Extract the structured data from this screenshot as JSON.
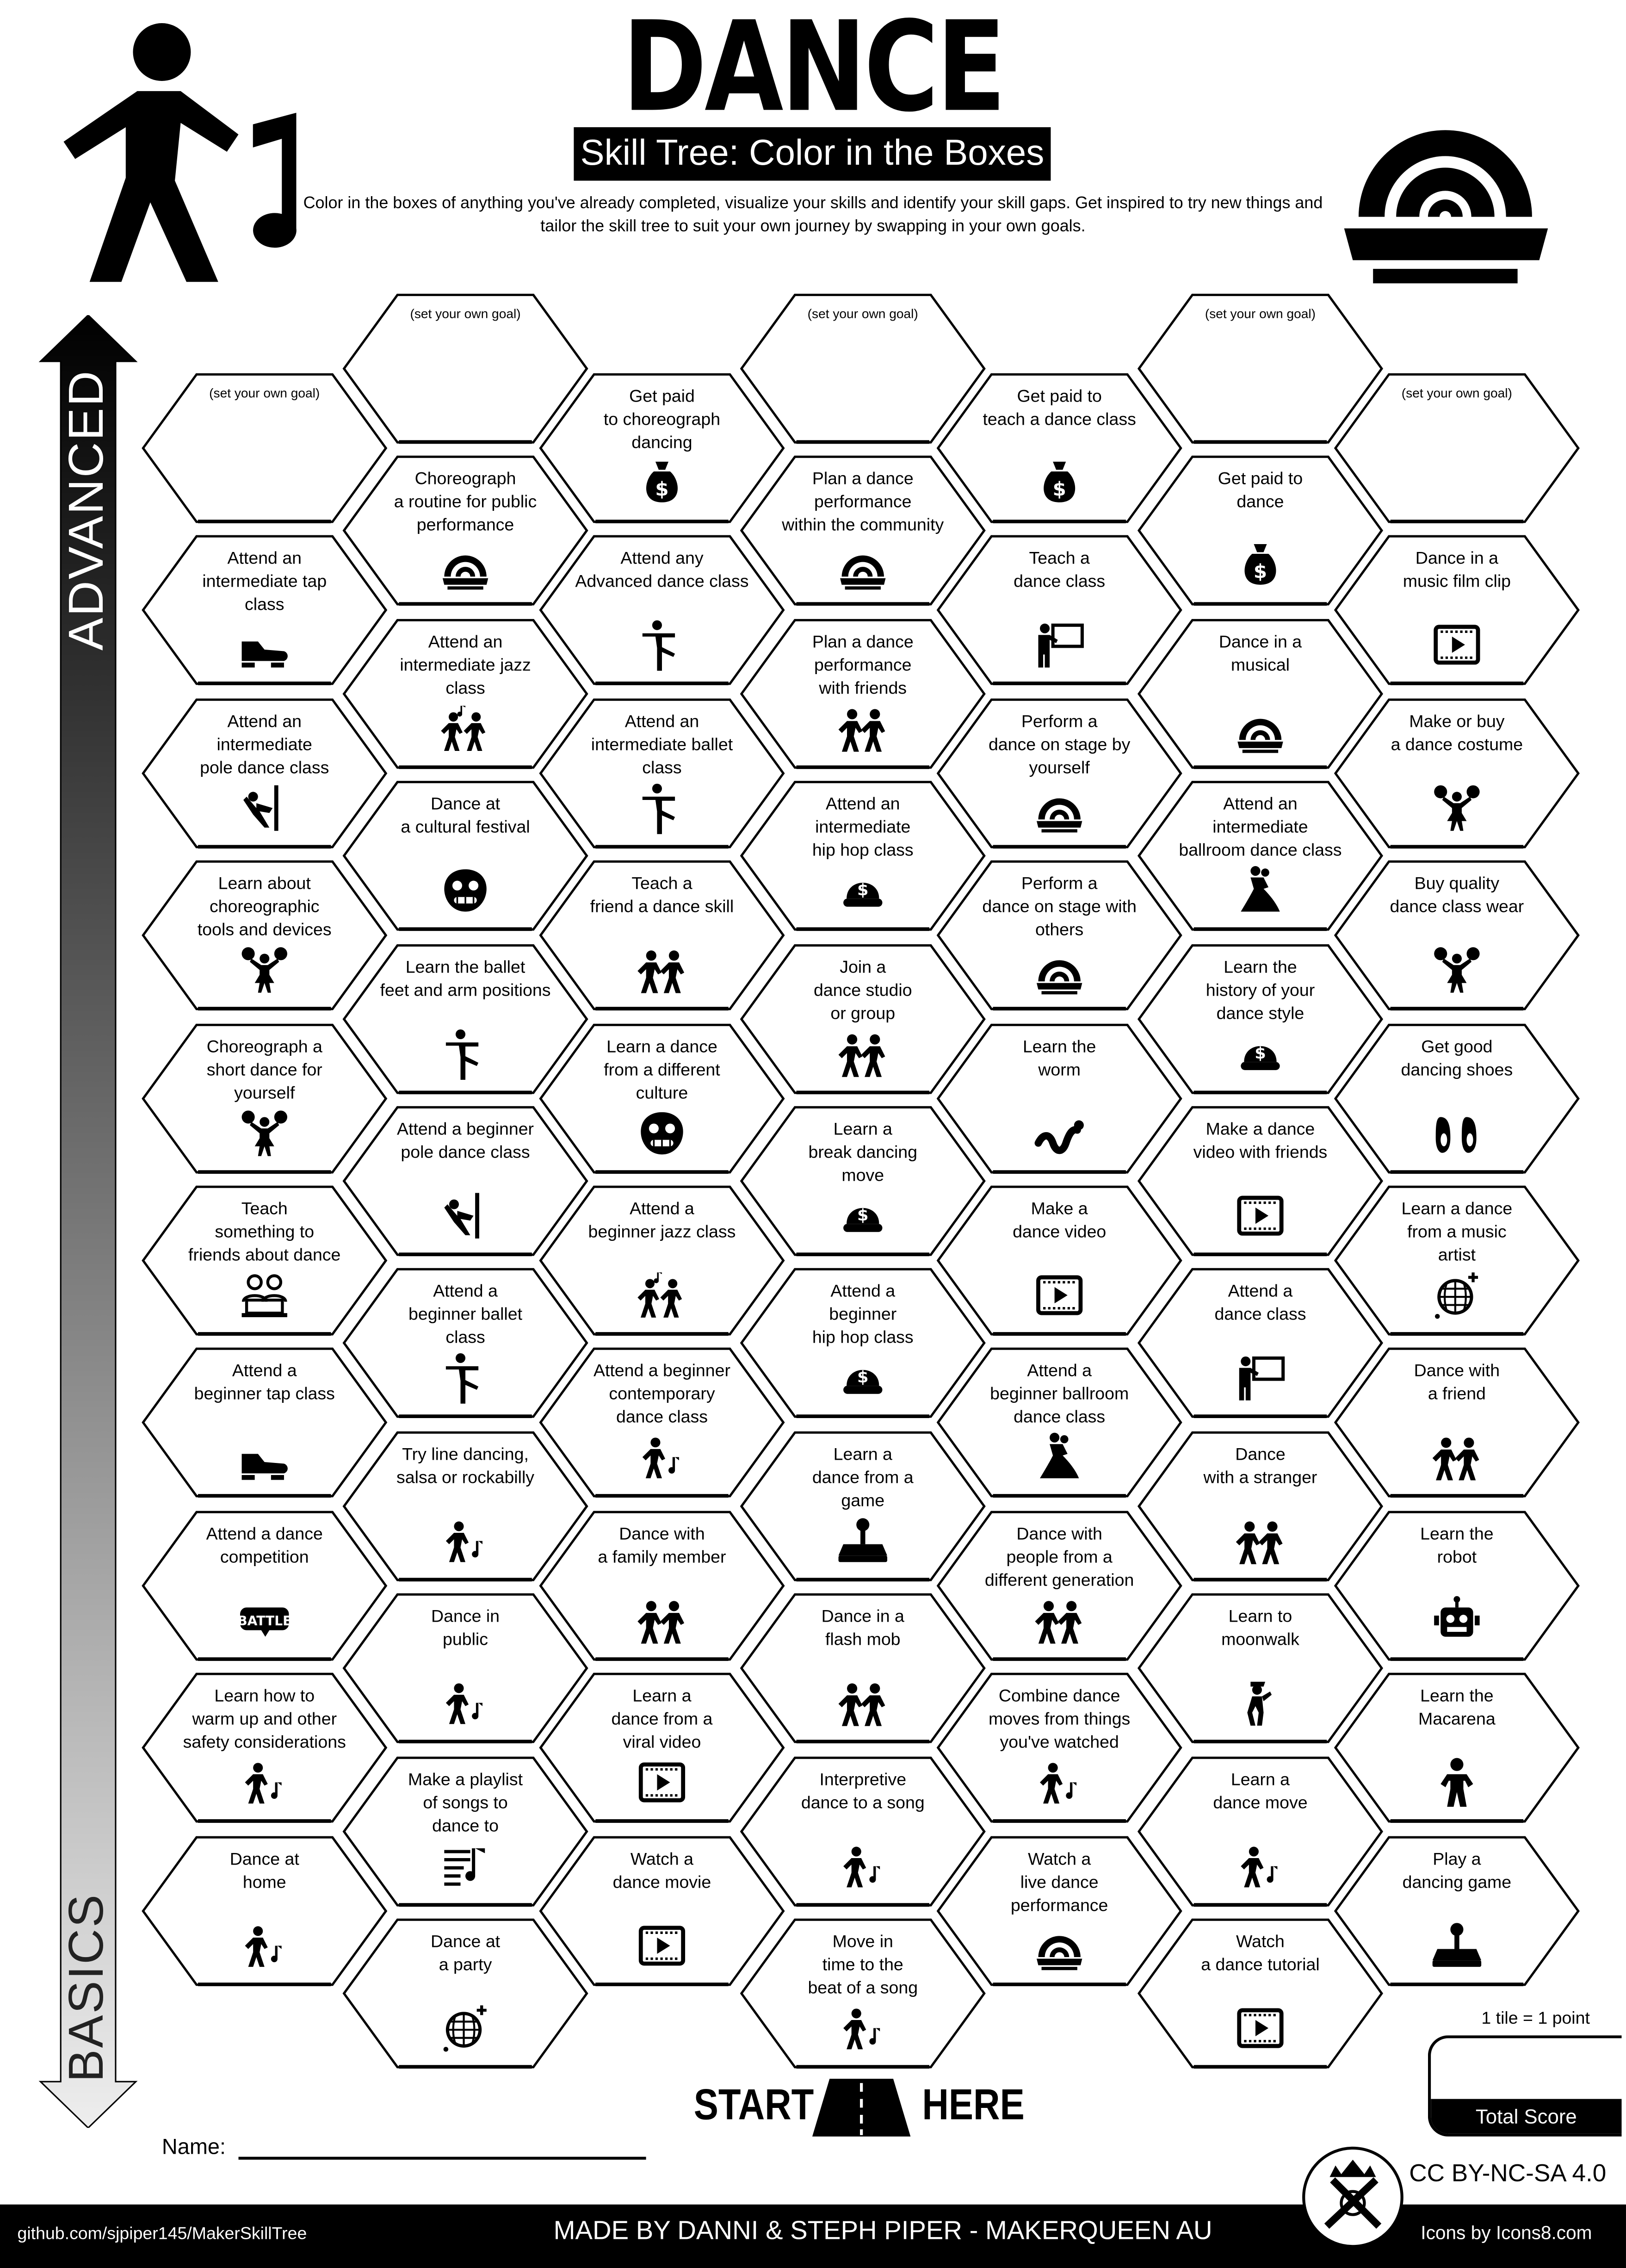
{
  "header": {
    "title": "DANCE",
    "subtitle": "Skill Tree: Color in the Boxes",
    "description": "Color in the boxes of anything you've already completed, visualize your skills and identify your skill gaps.  Get inspired to try new things and tailor the skill tree to suit your own journey by swapping in your own goals."
  },
  "axis": {
    "top_label": "ADVANCED",
    "bottom_label": "BASICS"
  },
  "colors": {
    "ink": "#000000",
    "paper": "#ffffff",
    "arrow_bottom": "#e8e8e8"
  },
  "columns": [
    [
      {
        "label": "(set your own goal)",
        "goal": true
      },
      {
        "label": "Attend an\nintermediate tap\nclass",
        "icon": "tap-shoe-icon"
      },
      {
        "label": "Attend an\nintermediate\npole dance class",
        "icon": "pole-dance-icon"
      },
      {
        "label": "Learn about\nchoreographic\ntools and devices",
        "icon": "cheerleader-icon"
      },
      {
        "label": "Choreograph a\nshort dance for\nyourself",
        "icon": "cheerleader-icon"
      },
      {
        "label": "Teach\nsomething to\nfriends about dance",
        "icon": "friends-laptop-icon"
      },
      {
        "label": "Attend a\nbeginner tap class",
        "icon": "tap-shoe-icon"
      },
      {
        "label": "Attend a dance\ncompetition",
        "icon": "battle-badge-icon"
      },
      {
        "label": "Learn how to\nwarm up and other\nsafety considerations",
        "icon": "dancer-note-icon"
      },
      {
        "label": "Dance at\nhome",
        "icon": "dancer-note-icon"
      }
    ],
    [
      {
        "label": "(set your own goal)",
        "goal": true
      },
      {
        "label": "Choreograph\na routine for public\nperformance",
        "icon": "stage-icon"
      },
      {
        "label": "Attend an\nintermediate jazz\nclass",
        "icon": "jazz-dancers-icon"
      },
      {
        "label": "Dance at\na cultural festival",
        "icon": "lion-mask-icon"
      },
      {
        "label": "Learn the ballet\nfeet and arm positions",
        "icon": "ballet-pose-icon"
      },
      {
        "label": "Attend a beginner\npole dance class",
        "icon": "pole-dance-icon"
      },
      {
        "label": "Attend a\nbeginner ballet\nclass",
        "icon": "ballet-pose-icon"
      },
      {
        "label": "Try line dancing,\nsalsa or rockabilly",
        "icon": "dancer-note-icon"
      },
      {
        "label": "Dance in\npublic",
        "icon": "dancer-note-icon"
      },
      {
        "label": "Make a playlist\nof songs to\ndance to",
        "icon": "playlist-icon"
      },
      {
        "label": "Dance at\na party",
        "icon": "disco-ball-icon"
      }
    ],
    [
      {
        "label": "Get paid\nto choreograph\ndancing",
        "icon": "money-bag-icon"
      },
      {
        "label": "Attend any\nAdvanced dance class",
        "icon": "ballet-pose-icon"
      },
      {
        "label": "Attend an\nintermediate ballet\nclass",
        "icon": "ballet-pose-icon"
      },
      {
        "label": "Teach a\nfriend a dance skill",
        "icon": "group-dance-icon"
      },
      {
        "label": "Learn a dance\nfrom a different\nculture",
        "icon": "lion-mask-icon"
      },
      {
        "label": "Attend a\nbeginner jazz class",
        "icon": "jazz-dancers-icon"
      },
      {
        "label": "Attend a beginner\ncontemporary\ndance class",
        "icon": "dancer-note-icon"
      },
      {
        "label": "Dance with\na family member",
        "icon": "group-dance-icon"
      },
      {
        "label": "Learn a\ndance from a\nviral video",
        "icon": "video-icon"
      },
      {
        "label": "Watch a\ndance movie",
        "icon": "video-icon"
      }
    ],
    [
      {
        "label": "(set your own goal)",
        "goal": true
      },
      {
        "label": "Plan a dance\nperformance\nwithin the community",
        "icon": "stage-icon"
      },
      {
        "label": "Plan a dance\nperformance\nwith friends",
        "icon": "group-dance-icon"
      },
      {
        "label": "Attend an\nintermediate\nhip hop class",
        "icon": "cap-icon"
      },
      {
        "label": "Join a\ndance studio\nor group",
        "icon": "group-dance-icon"
      },
      {
        "label": "Learn a\nbreak dancing\nmove",
        "icon": "cap-icon"
      },
      {
        "label": "Attend a\nbeginner\nhip hop class",
        "icon": "cap-icon"
      },
      {
        "label": "Learn a\ndance from a\ngame",
        "icon": "joystick-icon"
      },
      {
        "label": "Dance in a\nflash mob",
        "icon": "group-dance-icon"
      },
      {
        "label": "Interpretive\ndance to a song",
        "icon": "dancer-note-icon"
      },
      {
        "label": "Move in\ntime to the\nbeat of a song",
        "icon": "dancer-note-icon"
      }
    ],
    [
      {
        "label": "Get paid to\nteach a dance class",
        "icon": "money-bag-icon"
      },
      {
        "label": "Teach a\ndance class",
        "icon": "teacher-icon"
      },
      {
        "label": "Perform a\ndance on stage by\nyourself",
        "icon": "stage-icon"
      },
      {
        "label": "Perform a\ndance on stage with\nothers",
        "icon": "stage-icon"
      },
      {
        "label": "Learn the\nworm",
        "icon": "worm-icon"
      },
      {
        "label": "Make a\ndance video",
        "icon": "video-icon"
      },
      {
        "label": "Attend a\nbeginner ballroom\ndance class",
        "icon": "ballroom-couple-icon"
      },
      {
        "label": "Dance with\npeople from a\ndifferent generation",
        "icon": "group-dance-icon"
      },
      {
        "label": "Combine dance\nmoves from things\nyou've watched",
        "icon": "dancer-note-icon"
      },
      {
        "label": "Watch a\nlive dance\nperformance",
        "icon": "stage-icon"
      }
    ],
    [
      {
        "label": "(set your own goal)",
        "goal": true
      },
      {
        "label": "Get paid to\ndance",
        "icon": "money-bag-icon"
      },
      {
        "label": "Dance in a\nmusical",
        "icon": "stage-icon"
      },
      {
        "label": "Attend an\nintermediate\nballroom dance class",
        "icon": "ballroom-couple-icon"
      },
      {
        "label": "Learn the\nhistory of your\ndance style",
        "icon": "cap-icon"
      },
      {
        "label": "Make a dance\nvideo with friends",
        "icon": "video-icon"
      },
      {
        "label": "Attend a\ndance class",
        "icon": "teacher-icon"
      },
      {
        "label": "Dance\nwith a stranger",
        "icon": "group-dance-icon"
      },
      {
        "label": "Learn to\nmoonwalk",
        "icon": "moonwalk-icon"
      },
      {
        "label": "Learn a\ndance move",
        "icon": "dancer-note-icon"
      },
      {
        "label": "Watch\na dance tutorial",
        "icon": "video-icon"
      }
    ],
    [
      {
        "label": "(set your own goal)",
        "goal": true
      },
      {
        "label": "Dance in a\nmusic film clip",
        "icon": "video-icon"
      },
      {
        "label": "Make or buy\na dance costume",
        "icon": "cheerleader-icon"
      },
      {
        "label": "Buy quality\ndance class wear",
        "icon": "cheerleader-icon"
      },
      {
        "label": "Get good\ndancing shoes",
        "icon": "ballet-shoes-icon"
      },
      {
        "label": "Learn a dance\nfrom a music\nartist",
        "icon": "disco-ball-icon"
      },
      {
        "label": "Dance with\na friend",
        "icon": "group-dance-icon"
      },
      {
        "label": "Learn the\nrobot",
        "icon": "robot-icon"
      },
      {
        "label": "Learn the\nMacarena",
        "icon": "macarena-icon"
      },
      {
        "label": "Play a\ndancing game",
        "icon": "joystick-icon"
      }
    ]
  ],
  "score": {
    "rule": "1 tile = 1 point",
    "label": "Total Score"
  },
  "start": {
    "left": "START",
    "right": "HERE"
  },
  "name_label": "Name:",
  "footer": {
    "github": "github.com/sjpiper145/MakerSkillTree",
    "credits": "MADE BY DANNI & STEPH PIPER  -  MAKERQUEEN AU",
    "license": "CC BY-NC-SA 4.0",
    "icons_credit": "Icons by Icons8.com"
  }
}
